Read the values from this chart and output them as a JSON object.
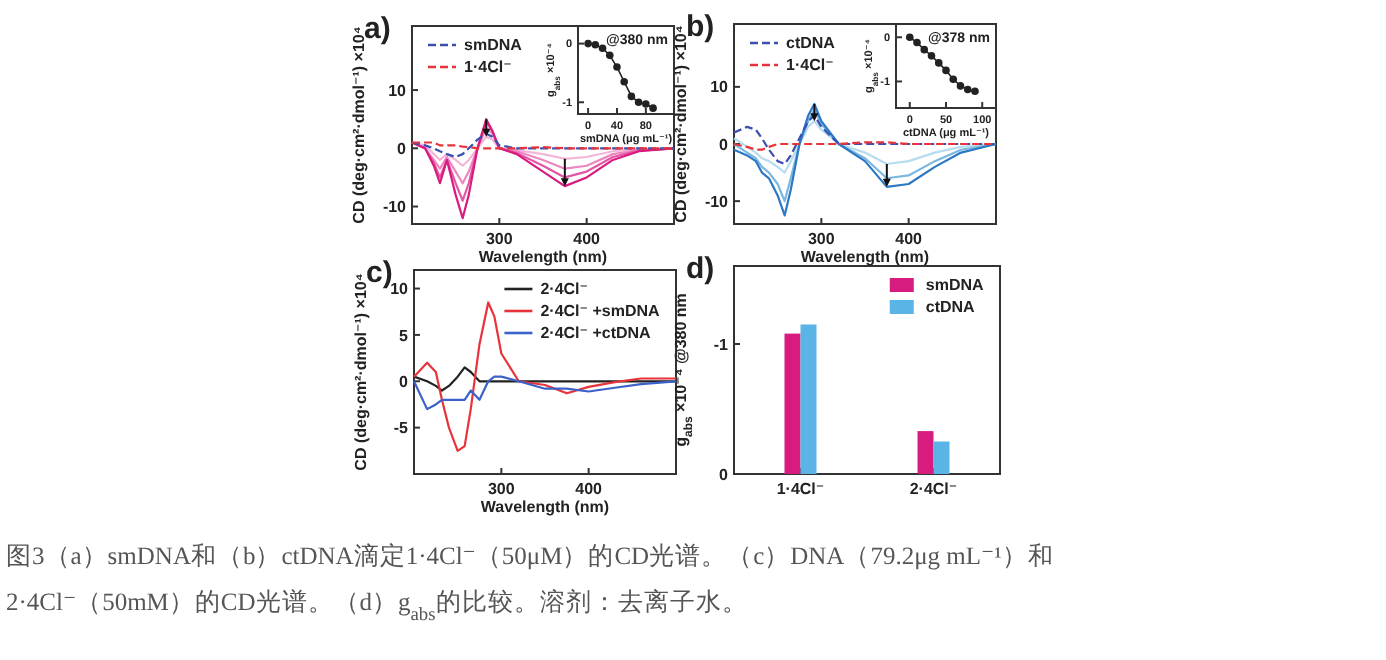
{
  "chart_data": [
    {
      "type": "line",
      "title": "a)",
      "xlabel": "Wavelength (nm)",
      "ylabel": "CD (deg·cm²·dmol⁻¹) ×10⁴",
      "x": [
        200,
        215,
        225,
        232,
        240,
        250,
        258,
        265,
        275,
        285,
        292,
        300,
        320,
        350,
        375,
        400,
        430,
        460,
        500
      ],
      "xlim": [
        200,
        500
      ],
      "ylim": [
        -13,
        21
      ],
      "xticks": [
        300,
        400
      ],
      "yticks": [
        -10,
        0,
        10
      ],
      "legend": "top left",
      "series": [
        {
          "color": "#f4b6d8",
          "values": [
            1,
            0.5,
            -1,
            -2,
            -1,
            -2,
            -3,
            -2,
            0,
            2,
            1.5,
            0,
            -0.3,
            -1,
            -1.8,
            -1.5,
            -0.5,
            -0.2,
            0
          ]
        },
        {
          "color": "#ee86c0",
          "values": [
            1,
            0,
            -2,
            -3.5,
            -1.5,
            -4,
            -6,
            -4,
            0,
            3.5,
            2.5,
            0,
            -0.5,
            -2,
            -3.5,
            -3,
            -1,
            -0.3,
            0
          ]
        },
        {
          "color": "#e456a5",
          "values": [
            1,
            0,
            -2.5,
            -5,
            -2,
            -6,
            -9,
            -6,
            0,
            4.5,
            3,
            0,
            -0.8,
            -3,
            -5,
            -4,
            -1.5,
            -0.4,
            0
          ]
        },
        {
          "color": "#d81b7f",
          "values": [
            1,
            0,
            -3,
            -6,
            -2,
            -8,
            -12,
            -8,
            0,
            5,
            3,
            0,
            -1,
            -4,
            -6.5,
            -5,
            -2,
            -0.5,
            0
          ]
        },
        {
          "name": "smDNA",
          "color": "#3a4fb0",
          "line_style": "dashed",
          "values": [
            1,
            0.5,
            0,
            -0.5,
            -1,
            -1.5,
            -1,
            0,
            1.5,
            2.5,
            2,
            0.5,
            0,
            0,
            0,
            0,
            0,
            0,
            0
          ]
        },
        {
          "name": "1·4Cl⁻",
          "color": "#e8333a",
          "line_style": "dashed",
          "values": [
            1,
            1,
            1,
            0.5,
            0.5,
            0.5,
            0.3,
            0.2,
            0,
            0,
            0,
            0,
            0,
            0.2,
            0,
            0,
            0,
            0,
            0
          ]
        }
      ]
    },
    {
      "type": "line",
      "xlabel": "smDNA (μg mL⁻¹)",
      "ylabel": "g$_{abs}$ ×10⁻⁴",
      "annotations": [
        "@380 nm"
      ],
      "marker": "circle",
      "x": [
        0,
        10,
        20,
        30,
        40,
        50,
        60,
        70,
        80,
        90
      ],
      "xlim": [
        -14,
        119
      ],
      "ylim": [
        -1.2,
        0.3
      ],
      "xticks": [
        0,
        40,
        80
      ],
      "yticks": [
        -1,
        0
      ],
      "series": [
        {
          "color": "#222222",
          "values": [
            0,
            -0.02,
            -0.08,
            -0.2,
            -0.4,
            -0.65,
            -0.9,
            -1.0,
            -1.03,
            -1.1
          ]
        }
      ]
    },
    {
      "type": "line",
      "title": "b)",
      "xlabel": "Wavelength (nm)",
      "ylabel": "CD (deg·cm²·dmol⁻¹) ×10⁴",
      "x": [
        200,
        215,
        225,
        232,
        240,
        250,
        258,
        265,
        275,
        285,
        292,
        300,
        320,
        350,
        375,
        400,
        430,
        460,
        500
      ],
      "xlim": [
        200,
        500
      ],
      "ylim": [
        -14,
        21
      ],
      "xticks": [
        300,
        400
      ],
      "yticks": [
        -10,
        0,
        10
      ],
      "legend": "top left",
      "series": [
        {
          "color": "#b7dcf0",
          "values": [
            1,
            -0.5,
            -1.5,
            -2.5,
            -3,
            -4,
            -5,
            -3,
            0,
            3,
            4,
            2.5,
            0,
            -1.5,
            -3.5,
            -3,
            -1.5,
            -0.5,
            0
          ]
        },
        {
          "color": "#7ab8e0",
          "values": [
            0,
            -1.5,
            -2.5,
            -4,
            -5,
            -7,
            -10,
            -6,
            0,
            4,
            6,
            3.5,
            0,
            -2.5,
            -6,
            -5.5,
            -3,
            -1,
            0
          ]
        },
        {
          "color": "#2c78c4",
          "values": [
            -1,
            -2,
            -3,
            -5,
            -6,
            -9,
            -12.5,
            -8,
            0,
            5,
            7,
            4,
            0,
            -3,
            -7.5,
            -7,
            -4,
            -1.5,
            0
          ]
        },
        {
          "name": "ctDNA",
          "color": "#3a4fb0",
          "line_style": "dashed",
          "values": [
            2,
            3,
            2.5,
            1,
            -1,
            -3,
            -3.5,
            -2,
            1,
            4,
            5,
            3,
            0,
            0,
            0,
            0,
            0,
            0,
            0
          ]
        },
        {
          "name": "1·4Cl⁻",
          "color": "#e8333a",
          "line_style": "dashed",
          "values": [
            0,
            -0.5,
            -1,
            -1,
            -0.5,
            0,
            0,
            0,
            0,
            0,
            0,
            0,
            0,
            0.3,
            0.3,
            0,
            0,
            0,
            0
          ]
        }
      ]
    },
    {
      "type": "line",
      "xlabel": "ctDNA (μg mL⁻¹)",
      "ylabel": "g$_{abs}$ ×10⁻⁴",
      "annotations": [
        "@378 nm"
      ],
      "marker": "circle",
      "x": [
        0,
        10,
        20,
        30,
        40,
        50,
        60,
        70,
        80,
        90
      ],
      "xlim": [
        -19,
        119
      ],
      "ylim": [
        -1.6,
        0.3
      ],
      "xticks": [
        0,
        50,
        100
      ],
      "yticks": [
        -1,
        0
      ],
      "series": [
        {
          "color": "#222222",
          "values": [
            0,
            -0.12,
            -0.28,
            -0.42,
            -0.58,
            -0.75,
            -0.95,
            -1.1,
            -1.18,
            -1.22
          ]
        }
      ]
    },
    {
      "type": "line",
      "title": "c)",
      "xlabel": "Wavelength (nm)",
      "ylabel": "CD (deg·cm²·dmol⁻¹) ×10⁴",
      "x": [
        200,
        215,
        225,
        232,
        240,
        250,
        258,
        265,
        275,
        285,
        292,
        300,
        320,
        350,
        375,
        400,
        430,
        460,
        500
      ],
      "xlim": [
        200,
        500
      ],
      "ylim": [
        -10,
        12
      ],
      "xticks": [
        300,
        400
      ],
      "yticks": [
        -5,
        0,
        5,
        10
      ],
      "legend": "top right",
      "series": [
        {
          "name": "2·4Cl⁻",
          "color": "#222222",
          "values": [
            0.5,
            0,
            -0.5,
            -1,
            -0.5,
            0.5,
            1.5,
            1,
            0,
            0,
            0,
            0,
            0,
            0,
            0,
            0,
            0,
            0,
            0
          ]
        },
        {
          "name": "2·4Cl⁻ +smDNA",
          "color": "#e8333a",
          "values": [
            0.5,
            2,
            1,
            -2,
            -5,
            -7.5,
            -7,
            -3,
            4,
            8.5,
            7,
            3,
            0,
            -0.4,
            -1.3,
            -0.6,
            -0.1,
            0.3,
            0.3
          ]
        },
        {
          "name": "2·4Cl⁻ +ctDNA",
          "color": "#3a62c8",
          "values": [
            0,
            -3,
            -2.5,
            -2,
            -2,
            -2,
            -2,
            -1,
            -2,
            0,
            0.5,
            0.5,
            0,
            -0.8,
            -0.8,
            -1.1,
            -0.7,
            -0.3,
            0
          ]
        }
      ]
    },
    {
      "type": "bar",
      "title": "d)",
      "ylabel": "g$_{abs}$ ×10⁻⁴ @380 nm",
      "categories": [
        "1·4Cl⁻",
        "2·4Cl⁻"
      ],
      "ylim": [
        0,
        -1.6
      ],
      "yticks": [
        0,
        -1
      ],
      "legend": "top right",
      "series": [
        {
          "name": "smDNA",
          "color": "#d81b7f",
          "values": [
            -1.08,
            -0.33
          ]
        },
        {
          "name": "ctDNA",
          "color": "#5ab4e5",
          "values": [
            -1.15,
            -0.25
          ]
        }
      ]
    },
    {
      "type": "other",
      "annotations": [
        "图3（a）smDNA和（b）ctDNA滴定1·4Cl⁻（50μM）的CD光谱。（c）DNA（79.2μg mL⁻¹）和",
        "2·4Cl⁻（50mM）的CD光谱。（d）g$_{abs}$的比较。溶剂：去离子水。"
      ]
    }
  ]
}
